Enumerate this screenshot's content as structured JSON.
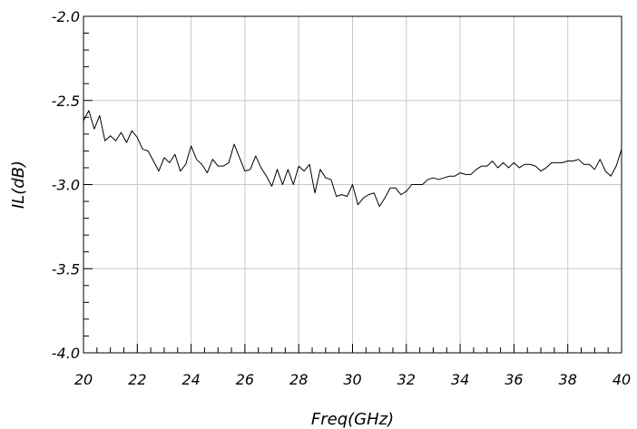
{
  "chart_data": {
    "type": "line",
    "xlabel": "Freq(GHz)",
    "ylabel": "IL(dB)",
    "xlim": [
      20,
      40
    ],
    "ylim": [
      -4.0,
      -2.0
    ],
    "x_ticks": [
      20,
      22,
      24,
      26,
      28,
      30,
      32,
      34,
      36,
      38,
      40
    ],
    "x_tick_labels": [
      "20",
      "22",
      "24",
      "26",
      "28",
      "30",
      "32",
      "34",
      "36",
      "38",
      "40"
    ],
    "y_ticks": [
      -2.0,
      -2.5,
      -3.0,
      -3.5,
      -4.0
    ],
    "y_tick_labels": [
      "-2.0",
      "-2.5",
      "-3.0",
      "-3.5",
      "-4.0"
    ],
    "grid": true,
    "line_color": "#000000",
    "grid_color": "#c8c8c8",
    "series": [
      {
        "x": [
          20.0,
          20.2,
          20.4,
          20.6,
          20.8,
          21.0,
          21.2,
          21.4,
          21.6,
          21.8,
          22.0,
          22.2,
          22.4,
          22.6,
          22.8,
          23.0,
          23.2,
          23.4,
          23.6,
          23.8,
          24.0,
          24.2,
          24.4,
          24.6,
          24.8,
          25.0,
          25.2,
          25.4,
          25.6,
          25.8,
          26.0,
          26.2,
          26.4,
          26.6,
          26.8,
          27.0,
          27.2,
          27.4,
          27.6,
          27.8,
          28.0,
          28.2,
          28.4,
          28.6,
          28.8,
          29.0,
          29.2,
          29.4,
          29.6,
          29.8,
          30.0,
          30.2,
          30.4,
          30.6,
          30.8,
          31.0,
          31.2,
          31.4,
          31.6,
          31.8,
          32.0,
          32.2,
          32.4,
          32.6,
          32.8,
          33.0,
          33.2,
          33.4,
          33.6,
          33.8,
          34.0,
          34.2,
          34.4,
          34.6,
          34.8,
          35.0,
          35.2,
          35.4,
          35.6,
          35.8,
          36.0,
          36.2,
          36.4,
          36.6,
          36.8,
          37.0,
          37.2,
          37.4,
          37.6,
          37.8,
          38.0,
          38.2,
          38.4,
          38.6,
          38.8,
          39.0,
          39.2,
          39.4,
          39.6,
          39.8,
          40.0
        ],
        "values": [
          -2.62,
          -2.56,
          -2.67,
          -2.59,
          -2.74,
          -2.71,
          -2.74,
          -2.69,
          -2.75,
          -2.68,
          -2.72,
          -2.79,
          -2.8,
          -2.86,
          -2.92,
          -2.84,
          -2.87,
          -2.82,
          -2.92,
          -2.88,
          -2.77,
          -2.85,
          -2.88,
          -2.93,
          -2.85,
          -2.89,
          -2.89,
          -2.87,
          -2.76,
          -2.84,
          -2.92,
          -2.91,
          -2.83,
          -2.9,
          -2.95,
          -3.01,
          -2.91,
          -3.0,
          -2.91,
          -3.0,
          -2.89,
          -2.92,
          -2.88,
          -3.05,
          -2.91,
          -2.96,
          -2.97,
          -3.07,
          -3.06,
          -3.07,
          -3.0,
          -3.12,
          -3.08,
          -3.06,
          -3.05,
          -3.13,
          -3.08,
          -3.02,
          -3.02,
          -3.06,
          -3.04,
          -3.0,
          -3.0,
          -3.0,
          -2.97,
          -2.96,
          -2.97,
          -2.96,
          -2.95,
          -2.95,
          -2.93,
          -2.94,
          -2.94,
          -2.91,
          -2.89,
          -2.89,
          -2.86,
          -2.9,
          -2.87,
          -2.9,
          -2.87,
          -2.9,
          -2.88,
          -2.88,
          -2.89,
          -2.92,
          -2.9,
          -2.87,
          -2.87,
          -2.87,
          -2.86,
          -2.86,
          -2.85,
          -2.88,
          -2.88,
          -2.91,
          -2.85,
          -2.92,
          -2.95,
          -2.89,
          -2.79
        ]
      }
    ]
  }
}
